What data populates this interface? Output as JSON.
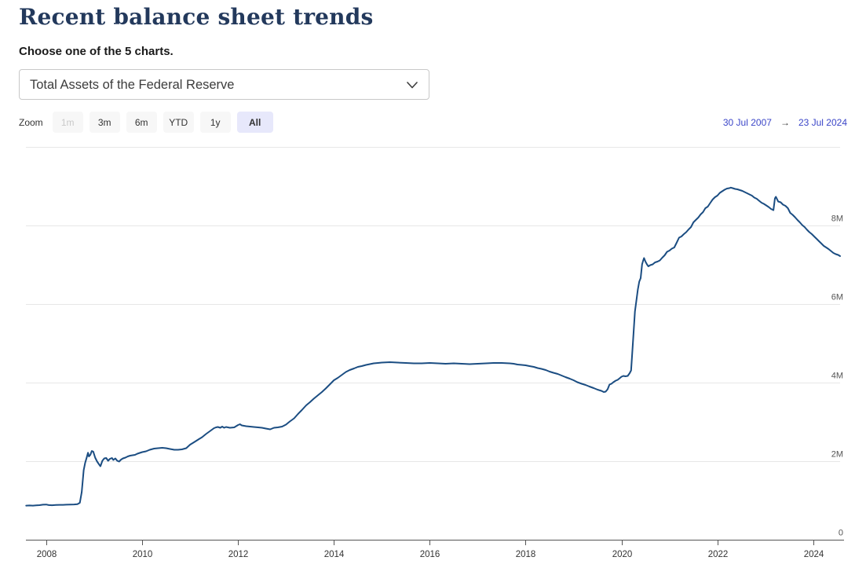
{
  "page": {
    "title": "Recent balance sheet trends",
    "subtitle": "Choose one of the 5 charts."
  },
  "chart_selector": {
    "selected": "Total Assets of the Federal Reserve",
    "options": [
      "Total Assets of the Federal Reserve"
    ]
  },
  "range_selector": {
    "zoom_label": "Zoom",
    "buttons": [
      {
        "label": "1m",
        "state": "disabled"
      },
      {
        "label": "3m",
        "state": "normal"
      },
      {
        "label": "6m",
        "state": "normal"
      },
      {
        "label": "YTD",
        "state": "normal"
      },
      {
        "label": "1y",
        "state": "normal"
      },
      {
        "label": "All",
        "state": "selected"
      }
    ],
    "from_date": "30 Jul 2007",
    "arrow": "→",
    "to_date": "23 Jul 2024"
  },
  "colors": {
    "line": "#1b4d82",
    "title_text": "#23395c",
    "grid": "#e7e7e7",
    "axis": "#555555",
    "x_tick_label": "#333333",
    "y_tick_label": "#555555",
    "button_bg": "#f7f7f7",
    "selected_button_bg": "#e7e8fb",
    "disabled_button_text": "#c9c9c9",
    "date_text": "#3b46c8"
  },
  "chart_data": {
    "type": "line",
    "title": "",
    "series_name": "Total Assets of the Federal Reserve",
    "x_range": [
      2007.575,
      2024.56
    ],
    "y_range": [
      0,
      10000000
    ],
    "grid": true,
    "legend": "none",
    "x_ticks": [
      {
        "value": 2008,
        "label": "2008"
      },
      {
        "value": 2010,
        "label": "2010"
      },
      {
        "value": 2012,
        "label": "2012"
      },
      {
        "value": 2014,
        "label": "2014"
      },
      {
        "value": 2016,
        "label": "2016"
      },
      {
        "value": 2018,
        "label": "2018"
      },
      {
        "value": 2020,
        "label": "2020"
      },
      {
        "value": 2022,
        "label": "2022"
      },
      {
        "value": 2024,
        "label": "2024"
      }
    ],
    "y_ticks": [
      {
        "value": 0,
        "label": "0"
      },
      {
        "value": 2000000,
        "label": "2M"
      },
      {
        "value": 4000000,
        "label": "4M"
      },
      {
        "value": 6000000,
        "label": "6M"
      },
      {
        "value": 8000000,
        "label": "8M"
      },
      {
        "value": 10000000,
        "label": ""
      }
    ],
    "points": [
      [
        2007.58,
        869000
      ],
      [
        2007.65,
        871000
      ],
      [
        2007.72,
        868000
      ],
      [
        2007.79,
        874000
      ],
      [
        2007.86,
        880000
      ],
      [
        2007.93,
        891000
      ],
      [
        2008.0,
        896000
      ],
      [
        2008.05,
        882000
      ],
      [
        2008.12,
        879000
      ],
      [
        2008.2,
        885000
      ],
      [
        2008.28,
        889000
      ],
      [
        2008.35,
        887000
      ],
      [
        2008.42,
        892000
      ],
      [
        2008.5,
        894000
      ],
      [
        2008.58,
        898000
      ],
      [
        2008.65,
        905000
      ],
      [
        2008.7,
        940000
      ],
      [
        2008.74,
        1214000
      ],
      [
        2008.78,
        1772000
      ],
      [
        2008.81,
        1953000
      ],
      [
        2008.84,
        2076000
      ],
      [
        2008.87,
        2214000
      ],
      [
        2008.89,
        2120000
      ],
      [
        2008.92,
        2163000
      ],
      [
        2008.95,
        2259000
      ],
      [
        2008.98,
        2241000
      ],
      [
        2009.02,
        2090000
      ],
      [
        2009.06,
        1990000
      ],
      [
        2009.1,
        1920000
      ],
      [
        2009.13,
        1870000
      ],
      [
        2009.17,
        2010000
      ],
      [
        2009.21,
        2070000
      ],
      [
        2009.25,
        2080000
      ],
      [
        2009.29,
        2010000
      ],
      [
        2009.33,
        2060000
      ],
      [
        2009.37,
        2080000
      ],
      [
        2009.4,
        2030000
      ],
      [
        2009.44,
        2070000
      ],
      [
        2009.48,
        2010000
      ],
      [
        2009.52,
        1990000
      ],
      [
        2009.56,
        2040000
      ],
      [
        2009.6,
        2070000
      ],
      [
        2009.65,
        2090000
      ],
      [
        2009.7,
        2120000
      ],
      [
        2009.75,
        2140000
      ],
      [
        2009.8,
        2150000
      ],
      [
        2009.85,
        2160000
      ],
      [
        2009.9,
        2190000
      ],
      [
        2009.95,
        2210000
      ],
      [
        2010.0,
        2230000
      ],
      [
        2010.08,
        2250000
      ],
      [
        2010.16,
        2290000
      ],
      [
        2010.25,
        2320000
      ],
      [
        2010.33,
        2330000
      ],
      [
        2010.42,
        2340000
      ],
      [
        2010.5,
        2330000
      ],
      [
        2010.58,
        2310000
      ],
      [
        2010.67,
        2290000
      ],
      [
        2010.75,
        2290000
      ],
      [
        2010.83,
        2300000
      ],
      [
        2010.92,
        2330000
      ],
      [
        2011.0,
        2420000
      ],
      [
        2011.08,
        2480000
      ],
      [
        2011.17,
        2550000
      ],
      [
        2011.25,
        2610000
      ],
      [
        2011.33,
        2690000
      ],
      [
        2011.42,
        2770000
      ],
      [
        2011.5,
        2840000
      ],
      [
        2011.54,
        2860000
      ],
      [
        2011.58,
        2870000
      ],
      [
        2011.63,
        2850000
      ],
      [
        2011.67,
        2880000
      ],
      [
        2011.71,
        2850000
      ],
      [
        2011.75,
        2870000
      ],
      [
        2011.83,
        2850000
      ],
      [
        2011.92,
        2860000
      ],
      [
        2012.0,
        2920000
      ],
      [
        2012.04,
        2940000
      ],
      [
        2012.08,
        2910000
      ],
      [
        2012.17,
        2890000
      ],
      [
        2012.25,
        2880000
      ],
      [
        2012.33,
        2870000
      ],
      [
        2012.42,
        2860000
      ],
      [
        2012.5,
        2850000
      ],
      [
        2012.58,
        2830000
      ],
      [
        2012.67,
        2810000
      ],
      [
        2012.75,
        2850000
      ],
      [
        2012.83,
        2860000
      ],
      [
        2012.92,
        2880000
      ],
      [
        2013.0,
        2930000
      ],
      [
        2013.08,
        3010000
      ],
      [
        2013.17,
        3090000
      ],
      [
        2013.25,
        3200000
      ],
      [
        2013.33,
        3300000
      ],
      [
        2013.42,
        3420000
      ],
      [
        2013.5,
        3500000
      ],
      [
        2013.58,
        3590000
      ],
      [
        2013.67,
        3680000
      ],
      [
        2013.75,
        3760000
      ],
      [
        2013.83,
        3850000
      ],
      [
        2013.92,
        3960000
      ],
      [
        2014.0,
        4060000
      ],
      [
        2014.08,
        4120000
      ],
      [
        2014.17,
        4200000
      ],
      [
        2014.25,
        4270000
      ],
      [
        2014.33,
        4320000
      ],
      [
        2014.42,
        4360000
      ],
      [
        2014.5,
        4400000
      ],
      [
        2014.58,
        4420000
      ],
      [
        2014.67,
        4450000
      ],
      [
        2014.75,
        4470000
      ],
      [
        2014.83,
        4490000
      ],
      [
        2014.92,
        4500000
      ],
      [
        2015.0,
        4510000
      ],
      [
        2015.17,
        4520000
      ],
      [
        2015.33,
        4510000
      ],
      [
        2015.5,
        4500000
      ],
      [
        2015.67,
        4490000
      ],
      [
        2015.83,
        4490000
      ],
      [
        2016.0,
        4500000
      ],
      [
        2016.17,
        4490000
      ],
      [
        2016.33,
        4480000
      ],
      [
        2016.5,
        4490000
      ],
      [
        2016.67,
        4480000
      ],
      [
        2016.83,
        4470000
      ],
      [
        2017.0,
        4480000
      ],
      [
        2017.17,
        4490000
      ],
      [
        2017.33,
        4500000
      ],
      [
        2017.5,
        4500000
      ],
      [
        2017.67,
        4490000
      ],
      [
        2017.75,
        4480000
      ],
      [
        2017.83,
        4460000
      ],
      [
        2017.92,
        4450000
      ],
      [
        2018.0,
        4440000
      ],
      [
        2018.08,
        4420000
      ],
      [
        2018.17,
        4400000
      ],
      [
        2018.25,
        4370000
      ],
      [
        2018.33,
        4350000
      ],
      [
        2018.42,
        4320000
      ],
      [
        2018.5,
        4280000
      ],
      [
        2018.58,
        4250000
      ],
      [
        2018.67,
        4220000
      ],
      [
        2018.75,
        4180000
      ],
      [
        2018.83,
        4140000
      ],
      [
        2018.92,
        4100000
      ],
      [
        2019.0,
        4060000
      ],
      [
        2019.08,
        4010000
      ],
      [
        2019.17,
        3970000
      ],
      [
        2019.25,
        3940000
      ],
      [
        2019.33,
        3900000
      ],
      [
        2019.42,
        3860000
      ],
      [
        2019.5,
        3820000
      ],
      [
        2019.58,
        3790000
      ],
      [
        2019.63,
        3760000
      ],
      [
        2019.67,
        3770000
      ],
      [
        2019.71,
        3830000
      ],
      [
        2019.75,
        3950000
      ],
      [
        2019.79,
        3970000
      ],
      [
        2019.83,
        4010000
      ],
      [
        2019.88,
        4050000
      ],
      [
        2019.92,
        4070000
      ],
      [
        2019.96,
        4110000
      ],
      [
        2020.0,
        4150000
      ],
      [
        2020.04,
        4170000
      ],
      [
        2020.08,
        4160000
      ],
      [
        2020.13,
        4170000
      ],
      [
        2020.17,
        4240000
      ],
      [
        2020.2,
        4310000
      ],
      [
        2020.22,
        4670000
      ],
      [
        2020.25,
        5250000
      ],
      [
        2020.28,
        5810000
      ],
      [
        2020.31,
        6080000
      ],
      [
        2020.34,
        6370000
      ],
      [
        2020.37,
        6570000
      ],
      [
        2020.4,
        6660000
      ],
      [
        2020.43,
        7010000
      ],
      [
        2020.45,
        7100000
      ],
      [
        2020.47,
        7170000
      ],
      [
        2020.5,
        7080000
      ],
      [
        2020.53,
        7010000
      ],
      [
        2020.56,
        6960000
      ],
      [
        2020.6,
        6990000
      ],
      [
        2020.65,
        7010000
      ],
      [
        2020.7,
        7060000
      ],
      [
        2020.75,
        7080000
      ],
      [
        2020.8,
        7110000
      ],
      [
        2020.85,
        7180000
      ],
      [
        2020.9,
        7240000
      ],
      [
        2020.95,
        7330000
      ],
      [
        2021.0,
        7360000
      ],
      [
        2021.05,
        7410000
      ],
      [
        2021.1,
        7440000
      ],
      [
        2021.15,
        7560000
      ],
      [
        2021.2,
        7690000
      ],
      [
        2021.25,
        7720000
      ],
      [
        2021.3,
        7780000
      ],
      [
        2021.35,
        7830000
      ],
      [
        2021.4,
        7900000
      ],
      [
        2021.45,
        7960000
      ],
      [
        2021.5,
        8080000
      ],
      [
        2021.55,
        8140000
      ],
      [
        2021.6,
        8200000
      ],
      [
        2021.65,
        8280000
      ],
      [
        2021.7,
        8340000
      ],
      [
        2021.75,
        8440000
      ],
      [
        2021.8,
        8480000
      ],
      [
        2021.85,
        8570000
      ],
      [
        2021.9,
        8660000
      ],
      [
        2021.95,
        8720000
      ],
      [
        2022.0,
        8760000
      ],
      [
        2022.05,
        8830000
      ],
      [
        2022.1,
        8870000
      ],
      [
        2022.15,
        8910000
      ],
      [
        2022.2,
        8940000
      ],
      [
        2022.25,
        8950000
      ],
      [
        2022.28,
        8965000
      ],
      [
        2022.32,
        8950000
      ],
      [
        2022.37,
        8930000
      ],
      [
        2022.42,
        8920000
      ],
      [
        2022.47,
        8900000
      ],
      [
        2022.52,
        8880000
      ],
      [
        2022.57,
        8850000
      ],
      [
        2022.62,
        8820000
      ],
      [
        2022.67,
        8790000
      ],
      [
        2022.72,
        8760000
      ],
      [
        2022.77,
        8710000
      ],
      [
        2022.82,
        8680000
      ],
      [
        2022.87,
        8630000
      ],
      [
        2022.92,
        8580000
      ],
      [
        2022.97,
        8550000
      ],
      [
        2023.02,
        8510000
      ],
      [
        2023.07,
        8470000
      ],
      [
        2023.12,
        8420000
      ],
      [
        2023.17,
        8390000
      ],
      [
        2023.2,
        8690000
      ],
      [
        2023.22,
        8730000
      ],
      [
        2023.27,
        8610000
      ],
      [
        2023.32,
        8590000
      ],
      [
        2023.37,
        8530000
      ],
      [
        2023.42,
        8500000
      ],
      [
        2023.47,
        8440000
      ],
      [
        2023.52,
        8320000
      ],
      [
        2023.57,
        8270000
      ],
      [
        2023.62,
        8210000
      ],
      [
        2023.67,
        8140000
      ],
      [
        2023.72,
        8080000
      ],
      [
        2023.77,
        8010000
      ],
      [
        2023.82,
        7960000
      ],
      [
        2023.87,
        7890000
      ],
      [
        2023.92,
        7830000
      ],
      [
        2023.97,
        7780000
      ],
      [
        2024.02,
        7720000
      ],
      [
        2024.07,
        7660000
      ],
      [
        2024.12,
        7600000
      ],
      [
        2024.17,
        7540000
      ],
      [
        2024.22,
        7480000
      ],
      [
        2024.27,
        7440000
      ],
      [
        2024.32,
        7400000
      ],
      [
        2024.37,
        7350000
      ],
      [
        2024.42,
        7300000
      ],
      [
        2024.47,
        7270000
      ],
      [
        2024.52,
        7250000
      ],
      [
        2024.56,
        7220000
      ]
    ]
  }
}
